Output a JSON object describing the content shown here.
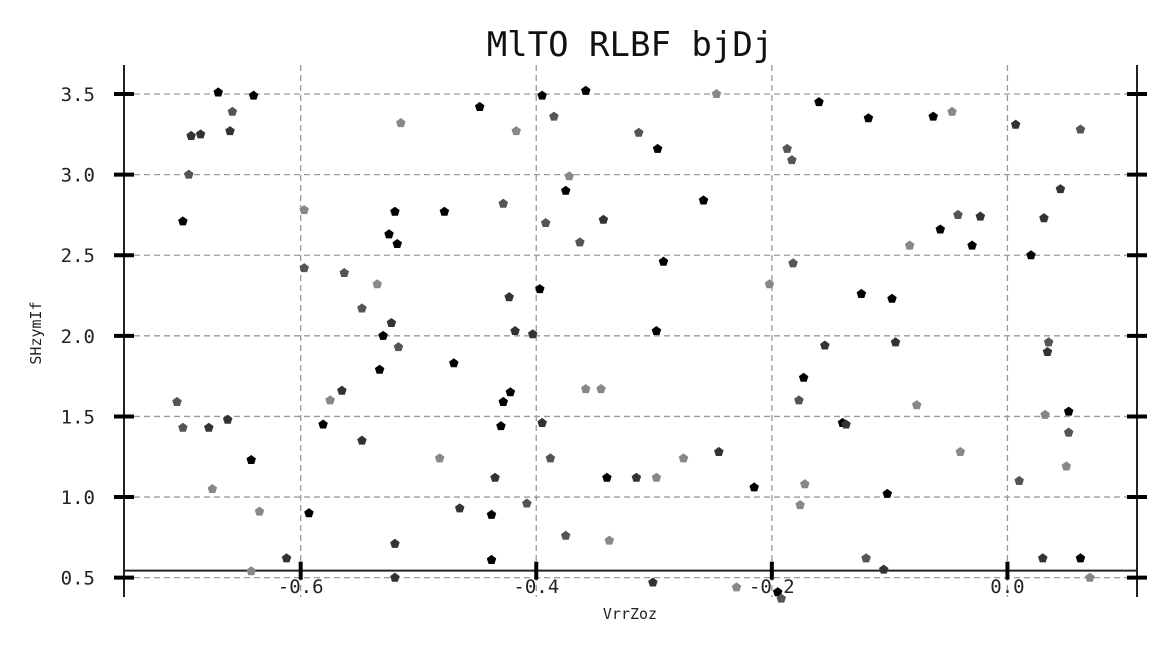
{
  "chart_data": {
    "type": "scatter",
    "title": "MlTO  RLBF bjDj",
    "xlabel": "VrrZoz",
    "ylabel": "SHzymIf",
    "xlim": [
      -0.75,
      0.11
    ],
    "ylim": [
      0.38,
      3.68
    ],
    "x_ticks": [
      -0.6,
      -0.4,
      -0.2,
      0.0
    ],
    "x_tick_labels": [
      "-0.6",
      "-0.4",
      "-0.2",
      "0.0"
    ],
    "y_ticks": [
      0.5,
      1.0,
      1.5,
      2.0,
      2.5,
      3.0,
      3.5
    ],
    "y_tick_labels": [
      "0.5",
      "1.0",
      "1.5",
      "2.0",
      "2.5",
      "3.0",
      "3.5"
    ],
    "grid": true,
    "marker": "pentagon",
    "colors": [
      "#000000",
      "#333333",
      "#555555",
      "#888888"
    ],
    "points": [
      {
        "x": -0.705,
        "y": 1.59,
        "c": 2
      },
      {
        "x": -0.7,
        "y": 1.43,
        "c": 2
      },
      {
        "x": -0.7,
        "y": 2.71,
        "c": 0
      },
      {
        "x": -0.695,
        "y": 3.0,
        "c": 2
      },
      {
        "x": -0.693,
        "y": 3.24,
        "c": 1
      },
      {
        "x": -0.685,
        "y": 3.25,
        "c": 1
      },
      {
        "x": -0.678,
        "y": 1.43,
        "c": 1
      },
      {
        "x": -0.675,
        "y": 1.05,
        "c": 3
      },
      {
        "x": -0.67,
        "y": 3.51,
        "c": 0
      },
      {
        "x": -0.662,
        "y": 1.48,
        "c": 1
      },
      {
        "x": -0.66,
        "y": 3.27,
        "c": 1
      },
      {
        "x": -0.658,
        "y": 3.39,
        "c": 2
      },
      {
        "x": -0.642,
        "y": 0.54,
        "c": 3
      },
      {
        "x": -0.642,
        "y": 1.23,
        "c": 0
      },
      {
        "x": -0.64,
        "y": 3.49,
        "c": 0
      },
      {
        "x": -0.635,
        "y": 0.91,
        "c": 3
      },
      {
        "x": -0.612,
        "y": 0.62,
        "c": 1
      },
      {
        "x": -0.597,
        "y": 2.78,
        "c": 3
      },
      {
        "x": -0.597,
        "y": 2.42,
        "c": 2
      },
      {
        "x": -0.593,
        "y": 0.9,
        "c": 0
      },
      {
        "x": -0.581,
        "y": 1.45,
        "c": 0
      },
      {
        "x": -0.575,
        "y": 1.6,
        "c": 3
      },
      {
        "x": -0.565,
        "y": 1.66,
        "c": 1
      },
      {
        "x": -0.563,
        "y": 2.39,
        "c": 2
      },
      {
        "x": -0.548,
        "y": 2.17,
        "c": 2
      },
      {
        "x": -0.548,
        "y": 1.35,
        "c": 1
      },
      {
        "x": -0.535,
        "y": 2.32,
        "c": 3
      },
      {
        "x": -0.533,
        "y": 1.79,
        "c": 0
      },
      {
        "x": -0.53,
        "y": 2.0,
        "c": 0
      },
      {
        "x": -0.525,
        "y": 2.63,
        "c": 0
      },
      {
        "x": -0.523,
        "y": 2.08,
        "c": 1
      },
      {
        "x": -0.52,
        "y": 2.77,
        "c": 0
      },
      {
        "x": -0.52,
        "y": 0.71,
        "c": 1
      },
      {
        "x": -0.52,
        "y": 0.5,
        "c": 1
      },
      {
        "x": -0.518,
        "y": 2.57,
        "c": 0
      },
      {
        "x": -0.517,
        "y": 1.93,
        "c": 2
      },
      {
        "x": -0.515,
        "y": 3.32,
        "c": 3
      },
      {
        "x": -0.482,
        "y": 1.24,
        "c": 3
      },
      {
        "x": -0.478,
        "y": 2.77,
        "c": 0
      },
      {
        "x": -0.47,
        "y": 1.83,
        "c": 0
      },
      {
        "x": -0.465,
        "y": 0.93,
        "c": 1
      },
      {
        "x": -0.448,
        "y": 3.42,
        "c": 0
      },
      {
        "x": -0.438,
        "y": 0.61,
        "c": 0
      },
      {
        "x": -0.438,
        "y": 0.89,
        "c": 0
      },
      {
        "x": -0.435,
        "y": 1.12,
        "c": 1
      },
      {
        "x": -0.43,
        "y": 1.44,
        "c": 0
      },
      {
        "x": -0.428,
        "y": 1.59,
        "c": 0
      },
      {
        "x": -0.428,
        "y": 2.82,
        "c": 2
      },
      {
        "x": -0.423,
        "y": 2.24,
        "c": 1
      },
      {
        "x": -0.422,
        "y": 1.65,
        "c": 0
      },
      {
        "x": -0.418,
        "y": 2.03,
        "c": 1
      },
      {
        "x": -0.417,
        "y": 3.27,
        "c": 3
      },
      {
        "x": -0.408,
        "y": 0.96,
        "c": 2
      },
      {
        "x": -0.403,
        "y": 2.01,
        "c": 1
      },
      {
        "x": -0.397,
        "y": 2.29,
        "c": 0
      },
      {
        "x": -0.395,
        "y": 3.49,
        "c": 0
      },
      {
        "x": -0.395,
        "y": 1.46,
        "c": 1
      },
      {
        "x": -0.392,
        "y": 2.7,
        "c": 2
      },
      {
        "x": -0.388,
        "y": 1.24,
        "c": 2
      },
      {
        "x": -0.385,
        "y": 3.36,
        "c": 2
      },
      {
        "x": -0.375,
        "y": 0.76,
        "c": 2
      },
      {
        "x": -0.375,
        "y": 2.9,
        "c": 0
      },
      {
        "x": -0.372,
        "y": 2.99,
        "c": 3
      },
      {
        "x": -0.363,
        "y": 2.58,
        "c": 2
      },
      {
        "x": -0.358,
        "y": 3.52,
        "c": 0
      },
      {
        "x": -0.358,
        "y": 1.67,
        "c": 3
      },
      {
        "x": -0.345,
        "y": 1.67,
        "c": 3
      },
      {
        "x": -0.343,
        "y": 2.72,
        "c": 1
      },
      {
        "x": -0.34,
        "y": 1.12,
        "c": 0
      },
      {
        "x": -0.338,
        "y": 0.73,
        "c": 3
      },
      {
        "x": -0.315,
        "y": 1.12,
        "c": 1
      },
      {
        "x": -0.313,
        "y": 3.26,
        "c": 2
      },
      {
        "x": -0.301,
        "y": 0.47,
        "c": 1
      },
      {
        "x": -0.298,
        "y": 2.03,
        "c": 0
      },
      {
        "x": -0.298,
        "y": 1.12,
        "c": 3
      },
      {
        "x": -0.297,
        "y": 3.16,
        "c": 0
      },
      {
        "x": -0.292,
        "y": 2.46,
        "c": 0
      },
      {
        "x": -0.275,
        "y": 1.24,
        "c": 3
      },
      {
        "x": -0.258,
        "y": 2.84,
        "c": 0
      },
      {
        "x": -0.247,
        "y": 3.5,
        "c": 3
      },
      {
        "x": -0.245,
        "y": 1.28,
        "c": 1
      },
      {
        "x": -0.23,
        "y": 0.44,
        "c": 3
      },
      {
        "x": -0.215,
        "y": 1.06,
        "c": 0
      },
      {
        "x": -0.202,
        "y": 2.32,
        "c": 3
      },
      {
        "x": -0.195,
        "y": 0.41,
        "c": 0
      },
      {
        "x": -0.192,
        "y": 0.37,
        "c": 2
      },
      {
        "x": -0.187,
        "y": 3.16,
        "c": 2
      },
      {
        "x": -0.183,
        "y": 3.09,
        "c": 2
      },
      {
        "x": -0.182,
        "y": 2.45,
        "c": 2
      },
      {
        "x": -0.177,
        "y": 1.6,
        "c": 2
      },
      {
        "x": -0.176,
        "y": 0.95,
        "c": 3
      },
      {
        "x": -0.173,
        "y": 1.74,
        "c": 0
      },
      {
        "x": -0.172,
        "y": 1.08,
        "c": 3
      },
      {
        "x": -0.16,
        "y": 3.45,
        "c": 0
      },
      {
        "x": -0.155,
        "y": 1.94,
        "c": 1
      },
      {
        "x": -0.14,
        "y": 1.46,
        "c": 0
      },
      {
        "x": -0.137,
        "y": 1.45,
        "c": 1
      },
      {
        "x": -0.124,
        "y": 2.26,
        "c": 0
      },
      {
        "x": -0.12,
        "y": 0.62,
        "c": 2
      },
      {
        "x": -0.118,
        "y": 3.35,
        "c": 0
      },
      {
        "x": -0.105,
        "y": 0.55,
        "c": 1
      },
      {
        "x": -0.102,
        "y": 1.02,
        "c": 0
      },
      {
        "x": -0.098,
        "y": 2.23,
        "c": 0
      },
      {
        "x": -0.095,
        "y": 1.96,
        "c": 1
      },
      {
        "x": -0.083,
        "y": 2.56,
        "c": 3
      },
      {
        "x": -0.077,
        "y": 1.57,
        "c": 3
      },
      {
        "x": -0.063,
        "y": 3.36,
        "c": 0
      },
      {
        "x": -0.057,
        "y": 2.66,
        "c": 0
      },
      {
        "x": -0.047,
        "y": 3.39,
        "c": 3
      },
      {
        "x": -0.042,
        "y": 2.75,
        "c": 2
      },
      {
        "x": -0.04,
        "y": 1.28,
        "c": 3
      },
      {
        "x": -0.03,
        "y": 2.56,
        "c": 0
      },
      {
        "x": -0.023,
        "y": 2.74,
        "c": 1
      },
      {
        "x": 0.007,
        "y": 3.31,
        "c": 1
      },
      {
        "x": 0.01,
        "y": 1.1,
        "c": 2
      },
      {
        "x": 0.02,
        "y": 2.5,
        "c": 0
      },
      {
        "x": 0.03,
        "y": 0.62,
        "c": 1
      },
      {
        "x": 0.031,
        "y": 2.73,
        "c": 1
      },
      {
        "x": 0.032,
        "y": 1.51,
        "c": 3
      },
      {
        "x": 0.034,
        "y": 1.9,
        "c": 1
      },
      {
        "x": 0.035,
        "y": 1.96,
        "c": 2
      },
      {
        "x": 0.045,
        "y": 2.91,
        "c": 1
      },
      {
        "x": 0.05,
        "y": 1.19,
        "c": 3
      },
      {
        "x": 0.052,
        "y": 1.53,
        "c": 0
      },
      {
        "x": 0.052,
        "y": 1.4,
        "c": 2
      },
      {
        "x": 0.062,
        "y": 0.62,
        "c": 0
      },
      {
        "x": 0.062,
        "y": 3.28,
        "c": 2
      },
      {
        "x": 0.07,
        "y": 0.5,
        "c": 3
      }
    ]
  }
}
